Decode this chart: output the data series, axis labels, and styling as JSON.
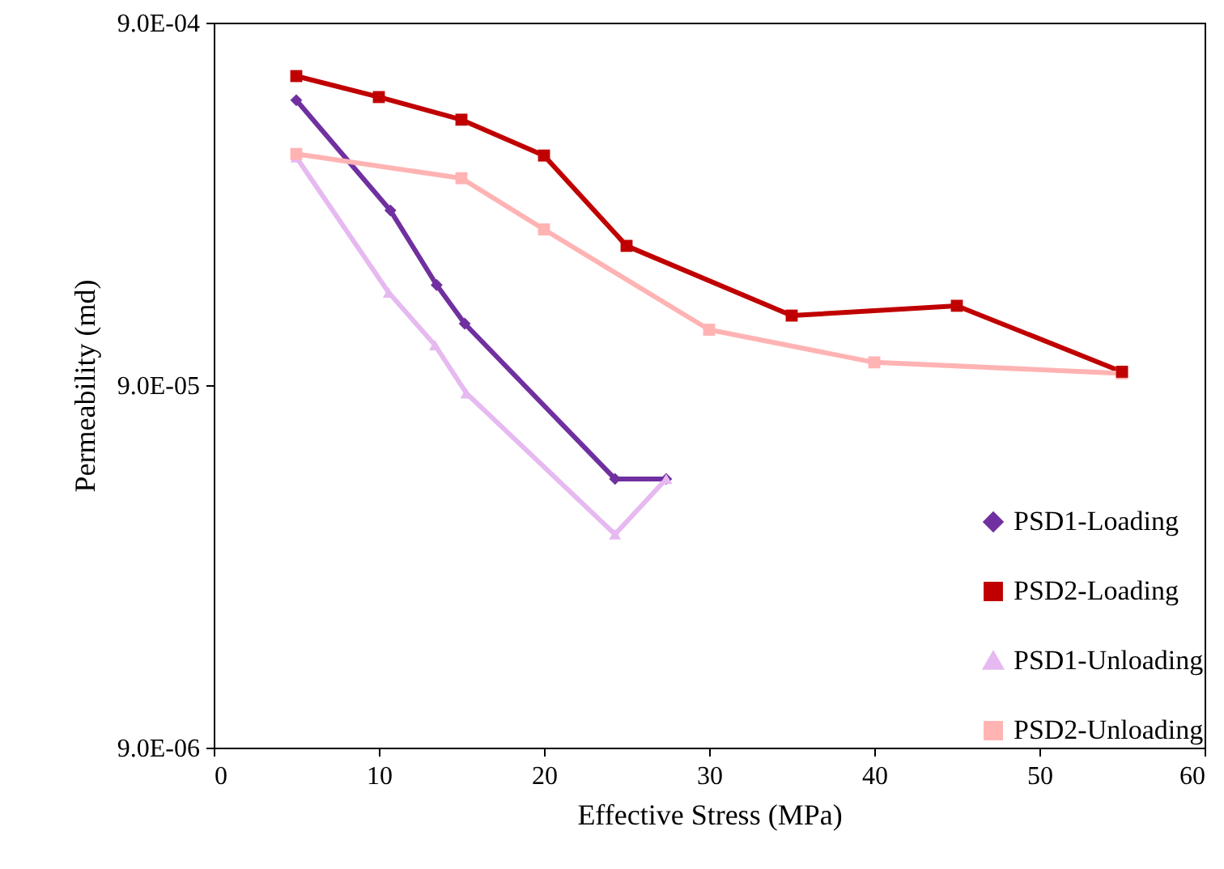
{
  "chart_data": {
    "type": "line",
    "xlabel": "Effective Stress (MPa)",
    "ylabel": "Permeability (md)",
    "xlim": [
      0,
      60
    ],
    "xticks": [
      0,
      10,
      20,
      30,
      40,
      50,
      60
    ],
    "ylim": [
      9e-06,
      0.0009
    ],
    "yticks": [
      {
        "value": 9e-06,
        "label": "9.0E-06"
      },
      {
        "value": 9e-05,
        "label": "9.0E-05"
      },
      {
        "value": 0.0009,
        "label": "9.0E-04"
      }
    ],
    "log": "y",
    "grid": false,
    "legend": "bottom right",
    "line_style": "solid",
    "series": [
      {
        "name": "PSD1-Loading",
        "color": "#7030a0",
        "marker": "diamond",
        "x": [
          5,
          10.7,
          13.5,
          15.2,
          24.3,
          27.4
        ],
        "values": [
          0.00055,
          0.000273,
          0.00017,
          0.000133,
          4.96e-05,
          4.96e-05
        ]
      },
      {
        "name": "PSD2-Loading",
        "color": "#c00000",
        "marker": "square",
        "x": [
          5,
          10,
          15,
          20,
          25,
          35,
          45,
          55
        ],
        "values": [
          0.000641,
          0.000561,
          0.000486,
          0.000387,
          0.000218,
          0.00014,
          0.000149,
          9.8e-05
        ]
      },
      {
        "name": "PSD1-Unloading",
        "color": "#e6b9f0",
        "marker": "triangle",
        "x": [
          5,
          10.6,
          13.4,
          15.3,
          24.3,
          27.4
        ],
        "values": [
          0.000383,
          0.000162,
          0.000116,
          8.55e-05,
          3.49e-05,
          4.96e-05
        ]
      },
      {
        "name": "PSD2-Unloading",
        "color": "#ffb3b3",
        "marker": "square",
        "x": [
          5,
          15,
          20,
          30,
          40,
          55
        ],
        "values": [
          0.000391,
          0.000335,
          0.000242,
          0.000128,
          0.000104,
          9.7e-05
        ]
      }
    ]
  }
}
